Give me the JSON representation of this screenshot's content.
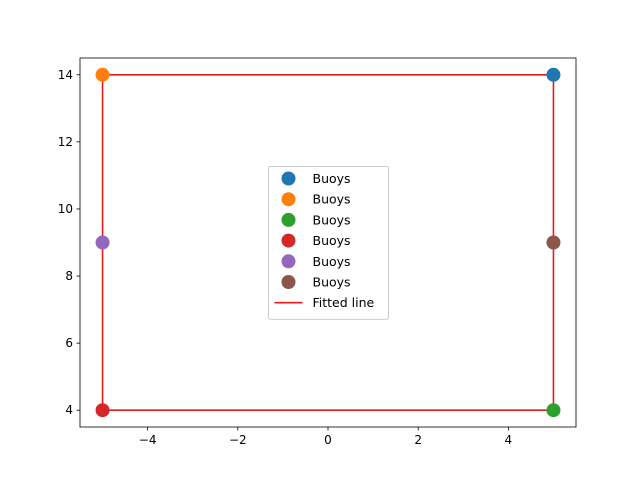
{
  "chart_data": {
    "type": "scatter",
    "title": "",
    "xlabel": "",
    "ylabel": "",
    "xlim": [
      -5.5,
      5.5
    ],
    "ylim": [
      3.5,
      14.5
    ],
    "x_ticks": [
      -4,
      -2,
      0,
      2,
      4
    ],
    "y_ticks": [
      4,
      6,
      8,
      10,
      12,
      14
    ],
    "grid": false,
    "legend_placement": "center",
    "series": [
      {
        "name": "Buoys",
        "type": "scatter",
        "color": "#1f77b4",
        "points": [
          [
            5,
            14
          ]
        ]
      },
      {
        "name": "Buoys",
        "type": "scatter",
        "color": "#ff7f0e",
        "points": [
          [
            -5,
            14
          ]
        ]
      },
      {
        "name": "Buoys",
        "type": "scatter",
        "color": "#2ca02c",
        "points": [
          [
            5,
            4
          ]
        ]
      },
      {
        "name": "Buoys",
        "type": "scatter",
        "color": "#d62728",
        "points": [
          [
            -5,
            4
          ]
        ]
      },
      {
        "name": "Buoys",
        "type": "scatter",
        "color": "#9467bd",
        "points": [
          [
            -5,
            9
          ]
        ]
      },
      {
        "name": "Buoys",
        "type": "scatter",
        "color": "#8c564b",
        "points": [
          [
            5,
            9
          ]
        ]
      },
      {
        "name": "Fitted line",
        "type": "line",
        "color": "#e41a1c",
        "points": [
          [
            -5,
            4
          ],
          [
            -5,
            14
          ],
          [
            5,
            14
          ],
          [
            5,
            4
          ],
          [
            -5,
            4
          ]
        ]
      }
    ]
  }
}
